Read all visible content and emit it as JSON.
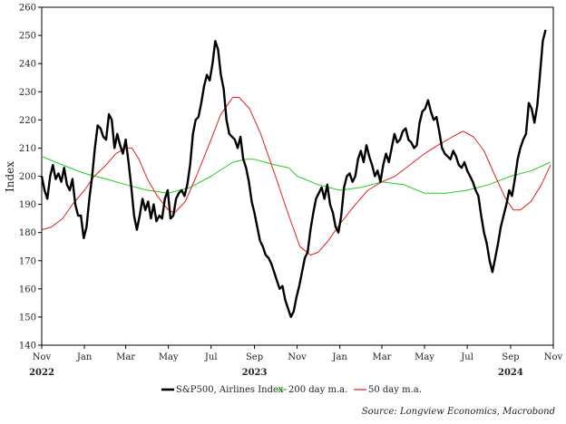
{
  "chart_data": {
    "type": "line",
    "ylabel": "Index",
    "ylim": [
      140,
      260
    ],
    "yticks": [
      140,
      150,
      160,
      170,
      180,
      190,
      200,
      210,
      220,
      230,
      240,
      250,
      260
    ],
    "xaxis": {
      "start": "2022-11-01",
      "end": "2024-11-01",
      "tick_labels": [
        {
          "date": "2022-11-01",
          "label": "Nov"
        },
        {
          "date": "2023-01-01",
          "label": "Jan"
        },
        {
          "date": "2023-03-01",
          "label": "Mar"
        },
        {
          "date": "2023-05-01",
          "label": "May"
        },
        {
          "date": "2023-07-01",
          "label": "Jul"
        },
        {
          "date": "2023-09-01",
          "label": "Sep"
        },
        {
          "date": "2023-11-01",
          "label": "Nov"
        },
        {
          "date": "2024-01-01",
          "label": "Jan"
        },
        {
          "date": "2024-03-01",
          "label": "Mar"
        },
        {
          "date": "2024-05-01",
          "label": "May"
        },
        {
          "date": "2024-07-01",
          "label": "Jul"
        },
        {
          "date": "2024-09-01",
          "label": "Sep"
        },
        {
          "date": "2024-11-01",
          "label": "Nov"
        }
      ],
      "year_labels": [
        {
          "date": "2022-11-01",
          "label": "2022"
        },
        {
          "date": "2023-09-01",
          "label": "2023"
        },
        {
          "date": "2024-09-01",
          "label": "2024"
        }
      ]
    },
    "grid": false,
    "legend_position": "bottom",
    "source": "Source: Longview Economics, Macrobond",
    "series": [
      {
        "name": "S&P500, Airlines Index",
        "color": "#000000",
        "points": [
          [
            "2022-11-01",
            200
          ],
          [
            "2022-11-05",
            195
          ],
          [
            "2022-11-09",
            192
          ],
          [
            "2022-11-13",
            200
          ],
          [
            "2022-11-17",
            204
          ],
          [
            "2022-11-21",
            199
          ],
          [
            "2022-11-25",
            201
          ],
          [
            "2022-11-29",
            198
          ],
          [
            "2022-12-03",
            203
          ],
          [
            "2022-12-07",
            197
          ],
          [
            "2022-12-11",
            195
          ],
          [
            "2022-12-15",
            199
          ],
          [
            "2022-12-19",
            190
          ],
          [
            "2022-12-23",
            186
          ],
          [
            "2022-12-27",
            186
          ],
          [
            "2022-12-31",
            178
          ],
          [
            "2023-01-04",
            182
          ],
          [
            "2023-01-08",
            192
          ],
          [
            "2023-01-12",
            200
          ],
          [
            "2023-01-16",
            210
          ],
          [
            "2023-01-20",
            218
          ],
          [
            "2023-01-24",
            217
          ],
          [
            "2023-01-28",
            214
          ],
          [
            "2023-02-01",
            213
          ],
          [
            "2023-02-05",
            222
          ],
          [
            "2023-02-09",
            220
          ],
          [
            "2023-02-13",
            210
          ],
          [
            "2023-02-17",
            215
          ],
          [
            "2023-02-21",
            211
          ],
          [
            "2023-02-25",
            208
          ],
          [
            "2023-03-01",
            213
          ],
          [
            "2023-03-05",
            205
          ],
          [
            "2023-03-09",
            196
          ],
          [
            "2023-03-13",
            186
          ],
          [
            "2023-03-17",
            181
          ],
          [
            "2023-03-21",
            186
          ],
          [
            "2023-03-25",
            192
          ],
          [
            "2023-03-29",
            188
          ],
          [
            "2023-04-02",
            191
          ],
          [
            "2023-04-06",
            185
          ],
          [
            "2023-04-10",
            190
          ],
          [
            "2023-04-14",
            184
          ],
          [
            "2023-04-18",
            186
          ],
          [
            "2023-04-22",
            185
          ],
          [
            "2023-04-26",
            192
          ],
          [
            "2023-04-30",
            195
          ],
          [
            "2023-05-04",
            185
          ],
          [
            "2023-05-08",
            186
          ],
          [
            "2023-05-12",
            192
          ],
          [
            "2023-05-16",
            194
          ],
          [
            "2023-05-20",
            195
          ],
          [
            "2023-05-24",
            193
          ],
          [
            "2023-05-28",
            197
          ],
          [
            "2023-06-01",
            204
          ],
          [
            "2023-06-05",
            215
          ],
          [
            "2023-06-09",
            220
          ],
          [
            "2023-06-13",
            221
          ],
          [
            "2023-06-17",
            226
          ],
          [
            "2023-06-21",
            232
          ],
          [
            "2023-06-25",
            236
          ],
          [
            "2023-06-29",
            234
          ],
          [
            "2023-07-03",
            240
          ],
          [
            "2023-07-07",
            248
          ],
          [
            "2023-07-11",
            245
          ],
          [
            "2023-07-15",
            236
          ],
          [
            "2023-07-19",
            231
          ],
          [
            "2023-07-23",
            220
          ],
          [
            "2023-07-27",
            215
          ],
          [
            "2023-07-31",
            214
          ],
          [
            "2023-08-04",
            213
          ],
          [
            "2023-08-08",
            210
          ],
          [
            "2023-08-12",
            214
          ],
          [
            "2023-08-16",
            206
          ],
          [
            "2023-08-20",
            203
          ],
          [
            "2023-08-24",
            198
          ],
          [
            "2023-08-28",
            191
          ],
          [
            "2023-09-01",
            187
          ],
          [
            "2023-09-05",
            182
          ],
          [
            "2023-09-09",
            177
          ],
          [
            "2023-09-13",
            175
          ],
          [
            "2023-09-17",
            172
          ],
          [
            "2023-09-21",
            171
          ],
          [
            "2023-09-25",
            169
          ],
          [
            "2023-09-29",
            166
          ],
          [
            "2023-10-03",
            163
          ],
          [
            "2023-10-07",
            160
          ],
          [
            "2023-10-11",
            161
          ],
          [
            "2023-10-15",
            156
          ],
          [
            "2023-10-19",
            153
          ],
          [
            "2023-10-23",
            150
          ],
          [
            "2023-10-27",
            152
          ],
          [
            "2023-10-31",
            157
          ],
          [
            "2023-11-04",
            161
          ],
          [
            "2023-11-08",
            166
          ],
          [
            "2023-11-12",
            171
          ],
          [
            "2023-11-16",
            173
          ],
          [
            "2023-11-20",
            181
          ],
          [
            "2023-11-24",
            187
          ],
          [
            "2023-11-28",
            192
          ],
          [
            "2023-12-02",
            194
          ],
          [
            "2023-12-06",
            196
          ],
          [
            "2023-12-10",
            192
          ],
          [
            "2023-12-14",
            197
          ],
          [
            "2023-12-18",
            190
          ],
          [
            "2023-12-22",
            187
          ],
          [
            "2023-12-26",
            182
          ],
          [
            "2023-12-30",
            180
          ],
          [
            "2024-01-03",
            186
          ],
          [
            "2024-01-07",
            196
          ],
          [
            "2024-01-11",
            200
          ],
          [
            "2024-01-15",
            201
          ],
          [
            "2024-01-19",
            198
          ],
          [
            "2024-01-23",
            200
          ],
          [
            "2024-01-27",
            206
          ],
          [
            "2024-01-31",
            209
          ],
          [
            "2024-02-04",
            205
          ],
          [
            "2024-02-08",
            211
          ],
          [
            "2024-02-12",
            207
          ],
          [
            "2024-02-16",
            204
          ],
          [
            "2024-02-20",
            200
          ],
          [
            "2024-02-24",
            202
          ],
          [
            "2024-02-28",
            198
          ],
          [
            "2024-03-03",
            204
          ],
          [
            "2024-03-07",
            208
          ],
          [
            "2024-03-11",
            205
          ],
          [
            "2024-03-15",
            210
          ],
          [
            "2024-03-19",
            215
          ],
          [
            "2024-03-23",
            212
          ],
          [
            "2024-03-27",
            213
          ],
          [
            "2024-03-31",
            216
          ],
          [
            "2024-04-04",
            217
          ],
          [
            "2024-04-08",
            213
          ],
          [
            "2024-04-12",
            212
          ],
          [
            "2024-04-16",
            210
          ],
          [
            "2024-04-20",
            211
          ],
          [
            "2024-04-24",
            219
          ],
          [
            "2024-04-28",
            223
          ],
          [
            "2024-05-02",
            224
          ],
          [
            "2024-05-06",
            227
          ],
          [
            "2024-05-10",
            223
          ],
          [
            "2024-05-14",
            220
          ],
          [
            "2024-05-18",
            221
          ],
          [
            "2024-05-22",
            216
          ],
          [
            "2024-05-26",
            210
          ],
          [
            "2024-05-30",
            208
          ],
          [
            "2024-06-03",
            207
          ],
          [
            "2024-06-07",
            206
          ],
          [
            "2024-06-11",
            209
          ],
          [
            "2024-06-15",
            207
          ],
          [
            "2024-06-19",
            204
          ],
          [
            "2024-06-23",
            203
          ],
          [
            "2024-06-27",
            205
          ],
          [
            "2024-07-01",
            202
          ],
          [
            "2024-07-05",
            200
          ],
          [
            "2024-07-09",
            198
          ],
          [
            "2024-07-13",
            195
          ],
          [
            "2024-07-17",
            193
          ],
          [
            "2024-07-21",
            186
          ],
          [
            "2024-07-25",
            180
          ],
          [
            "2024-07-29",
            176
          ],
          [
            "2024-08-02",
            170
          ],
          [
            "2024-08-06",
            166
          ],
          [
            "2024-08-10",
            171
          ],
          [
            "2024-08-14",
            176
          ],
          [
            "2024-08-18",
            182
          ],
          [
            "2024-08-22",
            186
          ],
          [
            "2024-08-26",
            190
          ],
          [
            "2024-08-30",
            195
          ],
          [
            "2024-09-03",
            193
          ],
          [
            "2024-09-07",
            199
          ],
          [
            "2024-09-11",
            206
          ],
          [
            "2024-09-15",
            210
          ],
          [
            "2024-09-19",
            213
          ],
          [
            "2024-09-23",
            215
          ],
          [
            "2024-09-27",
            226
          ],
          [
            "2024-10-01",
            224
          ],
          [
            "2024-10-05",
            219
          ],
          [
            "2024-10-09",
            225
          ],
          [
            "2024-10-13",
            236
          ],
          [
            "2024-10-17",
            248
          ],
          [
            "2024-10-21",
            252
          ]
        ]
      },
      {
        "name": "200 day m.a.",
        "color": "#22cc22",
        "points": [
          [
            "2022-11-01",
            207
          ],
          [
            "2022-12-01",
            204
          ],
          [
            "2023-01-01",
            201
          ],
          [
            "2023-02-01",
            199
          ],
          [
            "2023-03-01",
            197
          ],
          [
            "2023-04-01",
            195
          ],
          [
            "2023-05-01",
            194
          ],
          [
            "2023-06-01",
            196
          ],
          [
            "2023-07-01",
            200
          ],
          [
            "2023-08-01",
            205
          ],
          [
            "2023-08-20",
            206
          ],
          [
            "2023-09-01",
            206
          ],
          [
            "2023-10-01",
            204
          ],
          [
            "2023-10-20",
            203
          ],
          [
            "2023-11-01",
            200
          ],
          [
            "2023-12-01",
            197
          ],
          [
            "2024-01-01",
            195
          ],
          [
            "2024-02-01",
            196
          ],
          [
            "2024-03-01",
            198
          ],
          [
            "2024-04-01",
            197
          ],
          [
            "2024-05-01",
            194
          ],
          [
            "2024-06-01",
            194
          ],
          [
            "2024-07-01",
            195
          ],
          [
            "2024-08-01",
            197
          ],
          [
            "2024-09-01",
            200
          ],
          [
            "2024-10-01",
            202
          ],
          [
            "2024-10-28",
            205
          ]
        ]
      },
      {
        "name": "50 day m.a.",
        "color": "#e02020",
        "points": [
          [
            "2022-11-01",
            181
          ],
          [
            "2022-11-15",
            182
          ],
          [
            "2022-12-01",
            185
          ],
          [
            "2022-12-15",
            190
          ],
          [
            "2023-01-01",
            195
          ],
          [
            "2023-01-15",
            200
          ],
          [
            "2023-02-01",
            204
          ],
          [
            "2023-02-15",
            208
          ],
          [
            "2023-03-01",
            210
          ],
          [
            "2023-03-10",
            210
          ],
          [
            "2023-03-20",
            206
          ],
          [
            "2023-04-01",
            199
          ],
          [
            "2023-04-15",
            193
          ],
          [
            "2023-05-01",
            188
          ],
          [
            "2023-05-10",
            187
          ],
          [
            "2023-05-25",
            191
          ],
          [
            "2023-06-10",
            200
          ],
          [
            "2023-07-01",
            213
          ],
          [
            "2023-07-15",
            222
          ],
          [
            "2023-08-01",
            228
          ],
          [
            "2023-08-10",
            228
          ],
          [
            "2023-08-25",
            224
          ],
          [
            "2023-09-10",
            215
          ],
          [
            "2023-10-01",
            200
          ],
          [
            "2023-10-20",
            186
          ],
          [
            "2023-11-05",
            175
          ],
          [
            "2023-11-20",
            172
          ],
          [
            "2023-12-01",
            173
          ],
          [
            "2023-12-15",
            177
          ],
          [
            "2024-01-01",
            183
          ],
          [
            "2024-01-20",
            189
          ],
          [
            "2024-02-10",
            195
          ],
          [
            "2024-03-01",
            198
          ],
          [
            "2024-03-20",
            200
          ],
          [
            "2024-04-10",
            204
          ],
          [
            "2024-05-01",
            208
          ],
          [
            "2024-05-20",
            211
          ],
          [
            "2024-06-10",
            214
          ],
          [
            "2024-06-25",
            216
          ],
          [
            "2024-07-10",
            214
          ],
          [
            "2024-07-25",
            209
          ],
          [
            "2024-08-10",
            200
          ],
          [
            "2024-08-25",
            192
          ],
          [
            "2024-09-05",
            188
          ],
          [
            "2024-09-15",
            188
          ],
          [
            "2024-09-30",
            191
          ],
          [
            "2024-10-15",
            197
          ],
          [
            "2024-10-28",
            204
          ]
        ]
      }
    ]
  }
}
